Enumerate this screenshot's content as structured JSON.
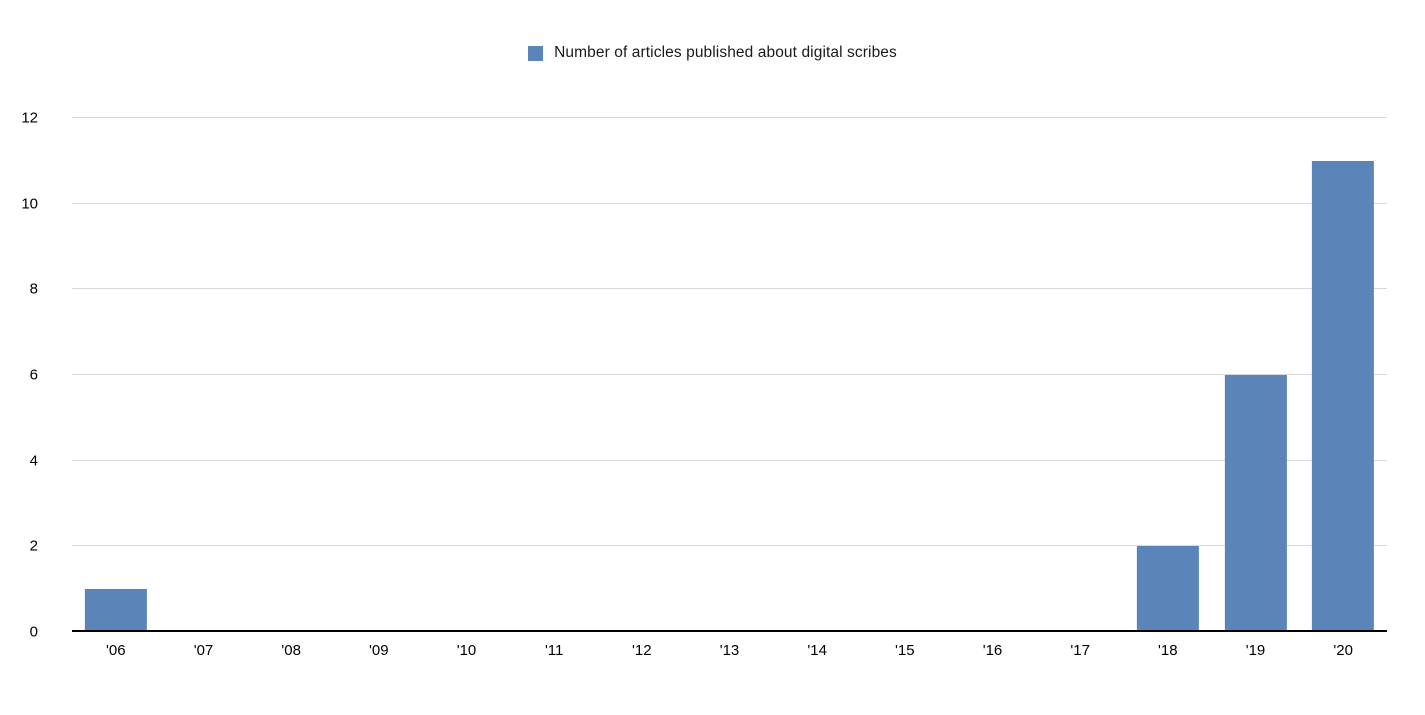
{
  "chart_data": {
    "type": "bar",
    "title": "",
    "legend_label": "Number of articles published about digital scribes",
    "legend_position": "top-center",
    "categories": [
      "'06",
      "'07",
      "'08",
      "'09",
      "'10",
      "'11",
      "'12",
      "'13",
      "'14",
      "'15",
      "'16",
      "'17",
      "'18",
      "'19",
      "'20"
    ],
    "values": [
      1,
      0,
      0,
      0,
      0,
      0,
      0,
      0,
      0,
      0,
      0,
      0,
      2,
      6,
      11
    ],
    "xlabel": "",
    "ylabel": "",
    "ylim": [
      0,
      12
    ],
    "yticks": [
      0,
      2,
      4,
      6,
      8,
      10,
      12
    ],
    "grid": true,
    "bar_width_fraction": 0.71,
    "colors": {
      "bar": "#5b84b8",
      "gridline": "#d9d9d9",
      "axis": "#000000",
      "text": "#000000"
    }
  }
}
